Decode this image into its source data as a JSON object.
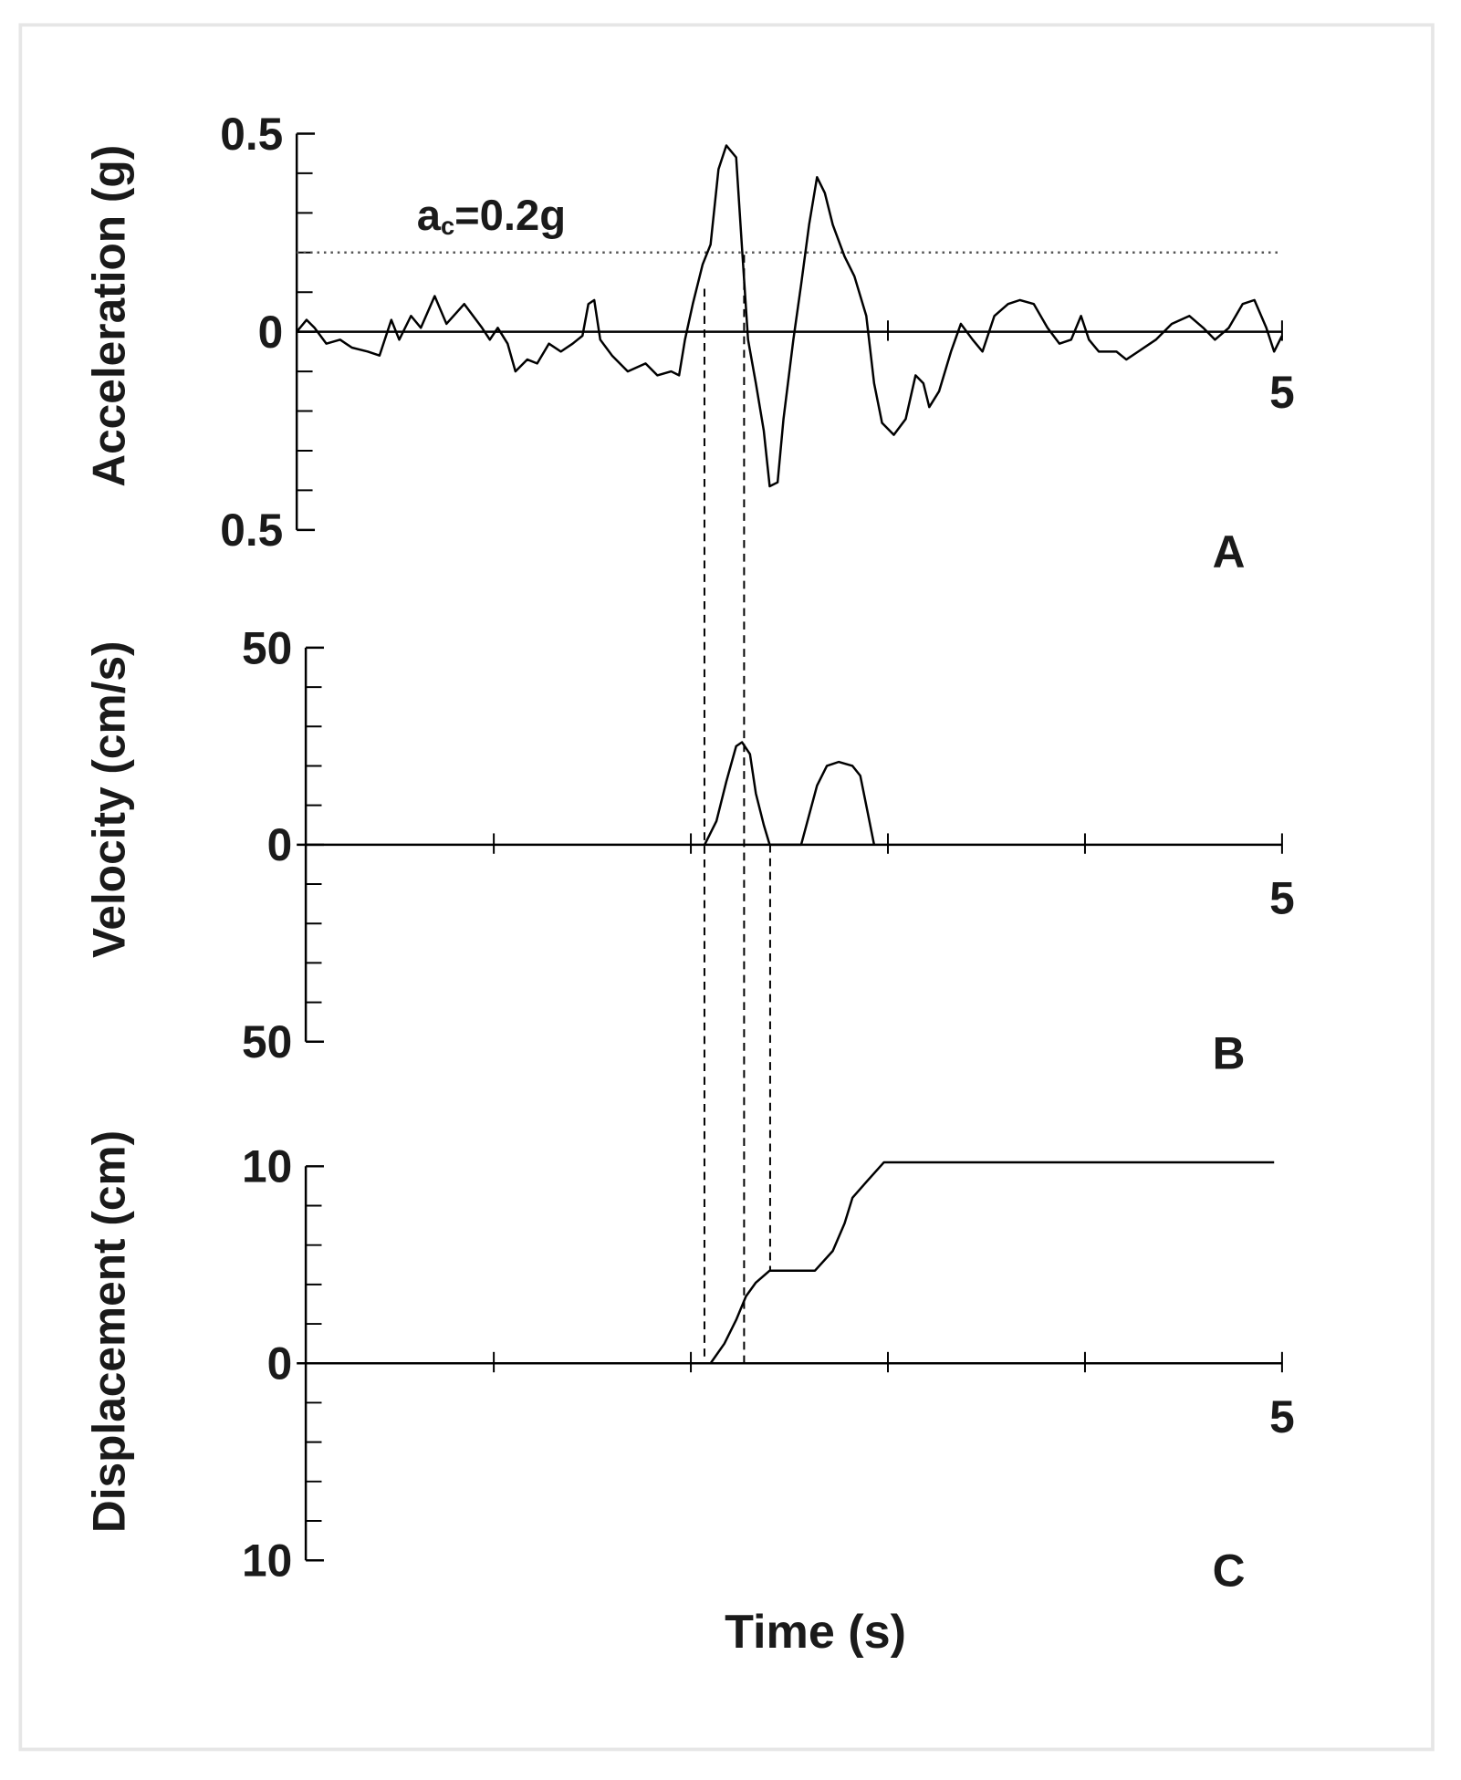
{
  "chart_data": [
    {
      "type": "line",
      "ylabel": "Acceleration (g)",
      "panel_label": "A",
      "threshold": 0.2,
      "threshold_label": [
        "a",
        "c",
        "=0.2g"
      ],
      "xlim": [
        0,
        5
      ],
      "xticks": [
        5
      ],
      "xminor_ticks": [
        3
      ],
      "ylim": [
        -0.5,
        0.5
      ],
      "yticks": [
        0.5,
        0,
        {
          "value": -0.5,
          "label": "0.5"
        }
      ],
      "yminor_ticks": [
        0.4,
        0.3,
        0.2,
        0.1,
        -0.1,
        -0.2,
        -0.3,
        -0.4
      ],
      "series": [
        {
          "color": "#000000",
          "x": [
            0,
            0.05,
            0.09,
            0.15,
            0.22,
            0.28,
            0.36,
            0.42,
            0.48,
            0.52,
            0.58,
            0.63,
            0.7,
            0.76,
            0.85,
            0.94,
            0.98,
            1.02,
            1.07,
            1.11,
            1.17,
            1.22,
            1.28,
            1.34,
            1.4,
            1.45,
            1.48,
            1.51,
            1.54,
            1.6,
            1.68,
            1.77,
            1.83,
            1.9,
            1.94,
            1.97,
            2.01,
            2.06,
            2.1,
            2.14,
            2.18,
            2.23,
            2.26,
            2.29,
            2.33,
            2.37,
            2.4,
            2.44,
            2.47,
            2.52,
            2.56,
            2.6,
            2.64,
            2.68,
            2.72,
            2.78,
            2.83,
            2.89,
            2.93,
            2.97,
            3.03,
            3.09,
            3.14,
            3.18,
            3.21,
            3.26,
            3.32,
            3.37,
            3.43,
            3.48,
            3.54,
            3.61,
            3.67,
            3.74,
            3.81,
            3.87,
            3.93,
            3.98,
            4.02,
            4.07,
            4.16,
            4.21,
            4.27,
            4.36,
            4.44,
            4.53,
            4.6,
            4.66,
            4.73,
            4.8,
            4.86,
            4.92,
            4.96,
            5
          ],
          "values": [
            0,
            0.03,
            0.01,
            -0.03,
            -0.02,
            -0.04,
            -0.05,
            -0.06,
            0.03,
            -0.02,
            0.04,
            0.01,
            0.09,
            0.02,
            0.07,
            0.01,
            -0.02,
            0.01,
            -0.03,
            -0.1,
            -0.07,
            -0.08,
            -0.03,
            -0.05,
            -0.03,
            -0.01,
            0.07,
            0.08,
            -0.02,
            -0.06,
            -0.1,
            -0.08,
            -0.11,
            -0.1,
            -0.11,
            -0.02,
            0.07,
            0.17,
            0.22,
            0.41,
            0.47,
            0.44,
            0.21,
            -0.02,
            -0.13,
            -0.25,
            -0.39,
            -0.38,
            -0.22,
            -0.02,
            0.12,
            0.27,
            0.39,
            0.35,
            0.27,
            0.19,
            0.14,
            0.04,
            -0.13,
            -0.23,
            -0.26,
            -0.22,
            -0.11,
            -0.13,
            -0.19,
            -0.15,
            -0.05,
            0.02,
            -0.02,
            -0.05,
            0.04,
            0.07,
            0.08,
            0.07,
            0.01,
            -0.03,
            -0.02,
            0.04,
            -0.02,
            -0.05,
            -0.05,
            -0.07,
            -0.05,
            -0.02,
            0.02,
            0.04,
            0.01,
            -0.02,
            0.01,
            0.07,
            0.08,
            0.01,
            -0.05,
            -0.01
          ]
        }
      ]
    },
    {
      "type": "line",
      "ylabel": "Velocity (cm/s)",
      "panel_label": "B",
      "xlim": [
        0,
        5
      ],
      "xticks": [
        5
      ],
      "xminor_ticks": [
        1,
        2,
        3,
        4
      ],
      "ylim": [
        -50,
        50
      ],
      "yticks": [
        50,
        0,
        {
          "value": -50,
          "label": "50"
        }
      ],
      "yminor_ticks": [
        40,
        30,
        20,
        10,
        -10,
        -20,
        -30,
        -40
      ],
      "series": [
        {
          "color": "#000000",
          "x": [
            2.07,
            2.13,
            2.18,
            2.23,
            2.26,
            2.3,
            2.33,
            2.37,
            2.4,
            2.56,
            2.6,
            2.64,
            2.69,
            2.75,
            2.82,
            2.86,
            2.9,
            2.93
          ],
          "values": [
            0,
            6,
            16,
            25,
            26,
            23,
            13,
            5,
            0,
            0,
            7.5,
            15,
            20,
            21,
            20,
            17.5,
            7.5,
            0
          ]
        }
      ]
    },
    {
      "type": "line",
      "ylabel": "Displacement (cm)",
      "panel_label": "C",
      "xlabel": "Time (s)",
      "xlim": [
        0,
        5
      ],
      "xticks": [
        5
      ],
      "xminor_ticks": [
        1,
        2,
        3,
        4
      ],
      "ylim": [
        -10,
        10
      ],
      "yticks": [
        10,
        0,
        {
          "value": -10,
          "label": "10"
        }
      ],
      "yminor_ticks": [
        8,
        6,
        4,
        2,
        -2,
        -4,
        -6,
        -8
      ],
      "series": [
        {
          "color": "#000000",
          "x": [
            2.1,
            2.17,
            2.23,
            2.28,
            2.33,
            2.4,
            2.63,
            2.72,
            2.78,
            2.82,
            2.89,
            2.98,
            4.96
          ],
          "values": [
            0,
            1,
            2.2,
            3.4,
            4.1,
            4.7,
            4.7,
            5.7,
            7.1,
            8.4,
            9.2,
            10.2,
            10.2
          ]
        }
      ]
    }
  ]
}
